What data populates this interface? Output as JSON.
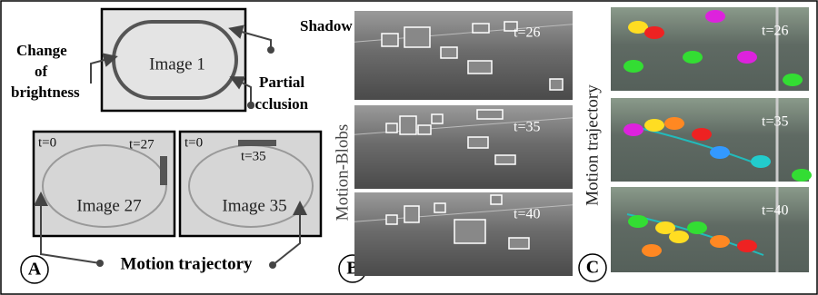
{
  "panel_a": {
    "shadow": "Shadow",
    "change_of_brightness": [
      "Change",
      "of",
      "brightness"
    ],
    "image1_label": "Image 1",
    "partial_occlusion": [
      "Partial",
      "occlusion"
    ],
    "image27": {
      "t_start": "t=0",
      "t_end": "t=27",
      "label": "Image 27"
    },
    "image35": {
      "t_start": "t=0",
      "t_end": "t=35",
      "label": "Image 35"
    },
    "motion_trajectory": "Motion trajectory",
    "letter": "A"
  },
  "panel_b": {
    "letter": "B",
    "vertical_label": "Motion-Blobs",
    "frames": [
      "t=26",
      "t=35",
      "t=40"
    ]
  },
  "panel_c": {
    "letter": "C",
    "vertical_label": "Motion trajectory",
    "frames": [
      "t=26",
      "t=35",
      "t=40"
    ]
  }
}
